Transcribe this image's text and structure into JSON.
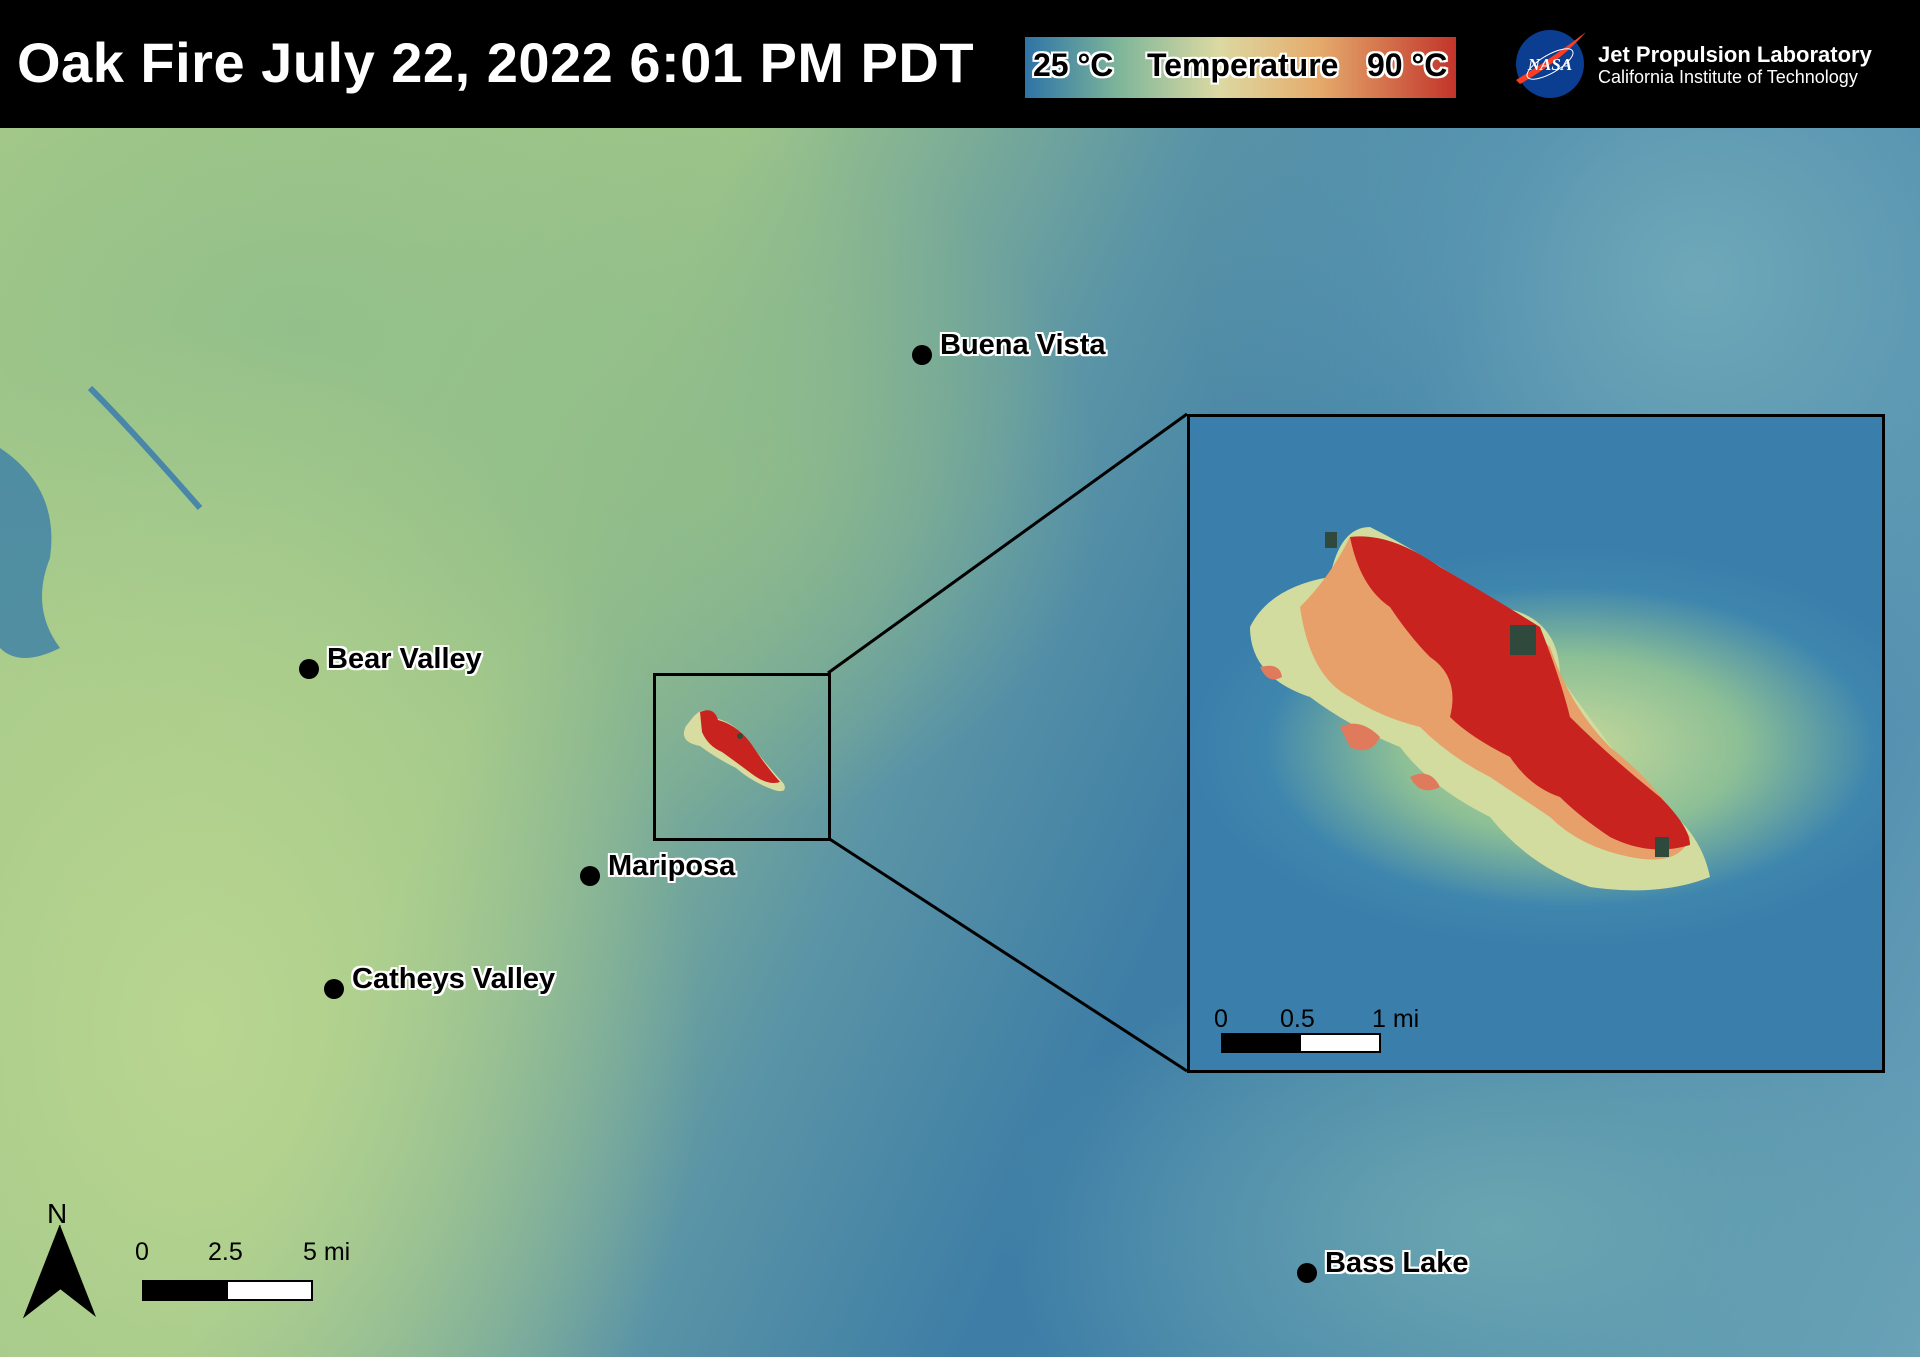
{
  "header": {
    "title": "Oak Fire July 22, 2022 6:01 PM PDT",
    "legend": {
      "min_label": "25 °C",
      "title": "Temperature",
      "max_label": "90 °C",
      "colors": [
        "#2e74a6",
        "#7fb69a",
        "#dcd9a2",
        "#e5ab6c",
        "#c2342a"
      ]
    },
    "logo": {
      "nasa_text": "NASA",
      "org_name": "Jet Propulsion Laboratory",
      "org_subtitle": "California Institute of Technology"
    }
  },
  "map": {
    "towns": [
      {
        "name": "Buena Vista"
      },
      {
        "name": "Bear Valley"
      },
      {
        "name": "Mariposa"
      },
      {
        "name": "Catheys Valley"
      },
      {
        "name": "Bass Lake"
      }
    ],
    "north_label": "N",
    "scale_bar": {
      "labels": [
        "0",
        "2.5",
        "5 mi"
      ]
    },
    "inset": {
      "scale_bar": {
        "labels": [
          "0",
          "0.5",
          "1 mi"
        ]
      }
    },
    "fire_colors": {
      "hot": "#c8231f",
      "warm": "#e8a06a",
      "cool": "#d9dca0",
      "burnt": "#2f4a3c"
    }
  }
}
